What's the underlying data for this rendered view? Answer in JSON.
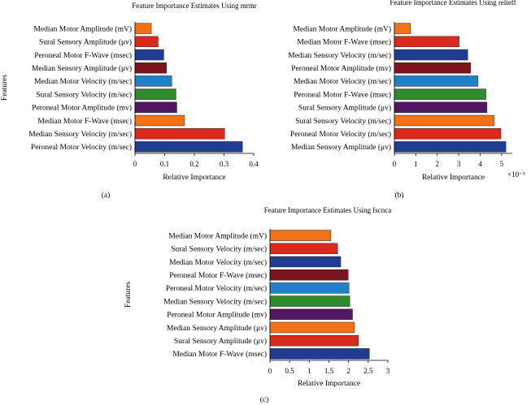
{
  "colors": {
    "bar_palette": [
      "#f47216",
      "#d92a1c",
      "#1f3d91",
      "#7c1420",
      "#1f82c8",
      "#2e8b2a",
      "#4f1860",
      "#f47216",
      "#d92a1c",
      "#1f3d91"
    ],
    "axis": "#000000"
  },
  "chart_data": [
    {
      "type": "bar",
      "orientation": "horizontal",
      "panel_label": "(a)",
      "title": "Feature Importance Estimates Using mrmr",
      "xlabel": "Relative Importance",
      "ylabel": "Features",
      "xlim": [
        0,
        0.4
      ],
      "xticks": [
        0,
        0.1,
        0.2,
        0.3,
        0.4
      ],
      "xtick_labels": [
        "0",
        "0.1",
        "0.2",
        "0.3",
        "0.4"
      ],
      "exponent_label": "",
      "categories": [
        "Median Motor Amplitude (mV)",
        "Sural Sensory Amplitude (μv)",
        "Peroneal Motor F-Wave (msec)",
        "Median Sensory Amplitude (μv)",
        "Median Motor Velocity (m/sec)",
        "Sural Sensory Velocity (m/sec)",
        "Peroneal Motor Amplitude (mv)",
        "Median Motor F-Wave (msec)",
        "Median Sensory Velocity (m/sec)",
        "Peroneal Motor Velocity (m/sec)"
      ],
      "values": [
        0.055,
        0.078,
        0.097,
        0.106,
        0.124,
        0.138,
        0.141,
        0.167,
        0.302,
        0.362
      ]
    },
    {
      "type": "bar",
      "orientation": "horizontal",
      "panel_label": "(b)",
      "title": "Feature Importance Estimates Using relieff",
      "xlabel": "Relative Importance",
      "ylabel": "",
      "xlim": [
        0,
        5.5
      ],
      "xticks": [
        0,
        1,
        2,
        3,
        4,
        5
      ],
      "xtick_labels": [
        "0",
        "1",
        "2",
        "3",
        "4",
        "5"
      ],
      "exponent_label": "×10⁻³",
      "categories": [
        "Median Motor Amplitude (mV)",
        "Median Motor F-Wave (msec)",
        "Median Sensory Velocity (m/sec)",
        "Peroneal Motor Amplitude (mv)",
        "Median Motor Velocity (m/sec)",
        "Peroneal Motor F-Wave (msec)",
        "Sural Sensory Amplitude (μv)",
        "Sural Sensory Velocity (m/sec)",
        "Peroneal Motor Velocity (m/sec)",
        "Median Sensory Amplitude (μv)"
      ],
      "values": [
        0.75,
        3.02,
        3.42,
        3.56,
        3.9,
        4.27,
        4.32,
        4.65,
        4.97,
        5.2
      ]
    },
    {
      "type": "bar",
      "orientation": "horizontal",
      "panel_label": "(c)",
      "title": "Feature Importance Estimates Using fscnca",
      "xlabel": "Relative Importance",
      "ylabel": "Features",
      "xlim": [
        0,
        3
      ],
      "xticks": [
        0,
        0.5,
        1,
        1.5,
        2,
        2.5,
        3
      ],
      "xtick_labels": [
        "0",
        "0.5",
        "1",
        "1.5",
        "2",
        "2.5",
        "3"
      ],
      "exponent_label": "",
      "categories": [
        "Median Motor Amplitude (mV)",
        "Sural Sensory Velocity (m/sec)",
        "Median Motor Velocity (m/sec)",
        "Peroneal Motor F-Wave (msec)",
        "Peroneal Motor Velocity (m/sec)",
        "Median Sensory Velocity (m/sec)",
        "Peroneal Motor Amplitude (mv)",
        "Median Sensory Amplitude (μv)",
        "Sural Sensory Amplitude (μv)",
        "Median Motor F-Wave (msec)"
      ],
      "values": [
        1.55,
        1.72,
        1.8,
        1.99,
        2.01,
        2.03,
        2.1,
        2.15,
        2.25,
        2.53
      ]
    }
  ]
}
